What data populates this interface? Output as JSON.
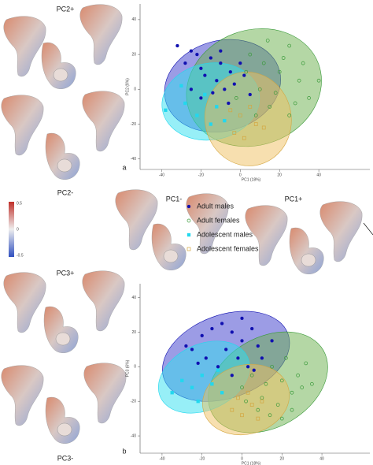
{
  "figure": {
    "pc_labels": [
      "PC2+",
      "PC2-",
      "PC1-",
      "PC1+",
      "PC3+",
      "PC3-"
    ],
    "colorbar_labels": [
      "0.5",
      "0",
      "-0.5"
    ]
  },
  "chart_data": [
    {
      "type": "scatter",
      "panel_label": "a",
      "x_label": "PC1 (18%)",
      "y_label": "PC2 (9%)",
      "xlim": [
        -51,
        66
      ],
      "ylim": [
        -46,
        49
      ],
      "xticks": [
        -40,
        -20,
        0,
        20,
        40
      ],
      "yticks": [
        -40,
        -20,
        0,
        20,
        40
      ],
      "series": [
        {
          "name": "Adult males",
          "color": "#1010b0",
          "marker": "filled-circle",
          "ellipse_color": "#3a3acc",
          "x": [
            -32,
            -25,
            -22,
            -28,
            -20,
            -15,
            -10,
            -18,
            -12,
            -5,
            -8,
            -14,
            -3,
            2,
            -20,
            -6,
            5,
            -25,
            0,
            -10
          ],
          "y": [
            25,
            22,
            20,
            15,
            12,
            18,
            15,
            8,
            5,
            10,
            0,
            -2,
            3,
            8,
            -5,
            -8,
            -3,
            0,
            15,
            22
          ],
          "ellipse": {
            "cx": -9,
            "cy": 2,
            "rx": 30,
            "ry": 26,
            "angle": -15
          }
        },
        {
          "name": "Adult females",
          "color": "#3a9a3a",
          "marker": "open-circle",
          "ellipse_color": "#6ab04c",
          "x": [
            5,
            12,
            20,
            25,
            18,
            30,
            10,
            15,
            28,
            35,
            22,
            8,
            -2,
            32,
            14,
            25,
            3,
            40
          ],
          "y": [
            20,
            15,
            10,
            25,
            -2,
            5,
            0,
            -10,
            -8,
            -5,
            18,
            -15,
            -5,
            15,
            28,
            -15,
            10,
            5
          ],
          "ellipse": {
            "cx": 7,
            "cy": 1,
            "rx": 35,
            "ry": 33,
            "angle": -20
          }
        },
        {
          "name": "Adolescent males",
          "color": "#22d8ee",
          "marker": "filled-square",
          "ellipse_color": "#30e0f0",
          "x": [
            -38,
            -28,
            -22,
            -18,
            -12,
            -8,
            -30,
            -15
          ],
          "y": [
            -12,
            -8,
            -15,
            -3,
            -10,
            -18,
            2,
            -20
          ],
          "ellipse": {
            "cx": -15,
            "cy": -7,
            "rx": 25,
            "ry": 22,
            "angle": -10
          }
        },
        {
          "name": "Adolescent females",
          "color": "#d4a640",
          "marker": "open-square",
          "ellipse_color": "#f0c060",
          "x": [
            0,
            8,
            -3,
            5,
            12,
            2,
            -5
          ],
          "y": [
            -15,
            -20,
            -25,
            -10,
            -22,
            -28,
            -12
          ],
          "ellipse": {
            "cx": 4,
            "cy": -17,
            "rx": 22,
            "ry": 27,
            "angle": -10
          }
        }
      ]
    },
    {
      "type": "scatter",
      "panel_label": "b",
      "x_label": "PC1 (18%)",
      "y_label": "PC3 (6%)",
      "xlim": [
        -51,
        64
      ],
      "ylim": [
        -50,
        48
      ],
      "xticks": [
        -40,
        -20,
        0,
        20,
        40
      ],
      "yticks": [
        -40,
        -20,
        0,
        20,
        40
      ],
      "series": [
        {
          "color": "#1010b0",
          "marker": "filled-circle",
          "ellipse_color": "#3a3acc",
          "x": [
            -25,
            -20,
            -15,
            -10,
            -5,
            0,
            5,
            -18,
            -8,
            -2,
            8,
            -12,
            3,
            10,
            -22,
            -5,
            15,
            0,
            -28,
            6
          ],
          "y": [
            10,
            18,
            22,
            25,
            20,
            15,
            22,
            5,
            10,
            5,
            12,
            0,
            0,
            5,
            2,
            -5,
            15,
            28,
            12,
            -2
          ],
          "ellipse": {
            "cx": -8,
            "cy": 6,
            "rx": 33,
            "ry": 24,
            "angle": -20
          }
        },
        {
          "color": "#3a9a3a",
          "marker": "open-circle",
          "ellipse_color": "#6ab04c",
          "x": [
            5,
            12,
            20,
            25,
            18,
            28,
            10,
            15,
            30,
            22,
            8,
            0,
            35,
            25,
            14,
            32,
            20,
            2
          ],
          "y": [
            -5,
            -10,
            -8,
            -15,
            -22,
            -5,
            -18,
            0,
            -12,
            5,
            -25,
            -12,
            -10,
            -25,
            -28,
            2,
            -30,
            -20
          ],
          "ellipse": {
            "cx": 13,
            "cy": -9,
            "rx": 32,
            "ry": 26,
            "angle": -30
          }
        },
        {
          "color": "#22d8ee",
          "marker": "filled-square",
          "ellipse_color": "#30e0f0",
          "x": [
            -30,
            -25,
            -20,
            -15,
            -22,
            -10,
            -35,
            -12
          ],
          "y": [
            -8,
            -12,
            -5,
            -10,
            -20,
            -15,
            -15,
            -2
          ],
          "ellipse": {
            "cx": -19,
            "cy": -6,
            "rx": 24,
            "ry": 19,
            "angle": -25
          }
        },
        {
          "color": "#d4a640",
          "marker": "open-square",
          "ellipse_color": "#f0c060",
          "x": [
            -2,
            5,
            0,
            10,
            -5,
            8,
            3
          ],
          "y": [
            -18,
            -22,
            -28,
            -20,
            -25,
            -30,
            -15
          ],
          "ellipse": {
            "cx": 2,
            "cy": -19,
            "rx": 22,
            "ry": 20,
            "angle": -15
          }
        }
      ]
    }
  ]
}
